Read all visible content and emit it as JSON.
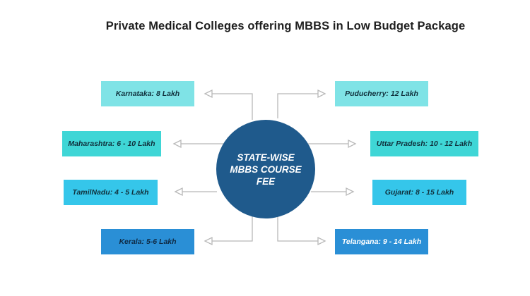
{
  "title": "Private Medical Colleges offering MBBS in Low Budget Package",
  "hub": {
    "label": "STATE-WISE\nMBBS COURSE\nFEE",
    "color": "#1f5a8c"
  },
  "colors": {
    "light": "#7fe3e6",
    "mid": "#3fd6d6",
    "sky": "#35c6ea",
    "blue": "#2a8fd6",
    "connector": "#b8b8b8"
  },
  "left_items": [
    {
      "label": "Karnataka: 8 Lakh"
    },
    {
      "label": "Maharashtra: 6 - 10 Lakh"
    },
    {
      "label": "TamilNadu: 4 - 5 Lakh"
    },
    {
      "label": "Kerala: 5-6 Lakh"
    }
  ],
  "right_items": [
    {
      "label": "Puducherry: 12 Lakh"
    },
    {
      "label": "Uttar Pradesh: 10 - 12 Lakh"
    },
    {
      "label": "Gujarat: 8 - 15 Lakh"
    },
    {
      "label": "Telangana: 9 - 14 Lakh"
    }
  ]
}
